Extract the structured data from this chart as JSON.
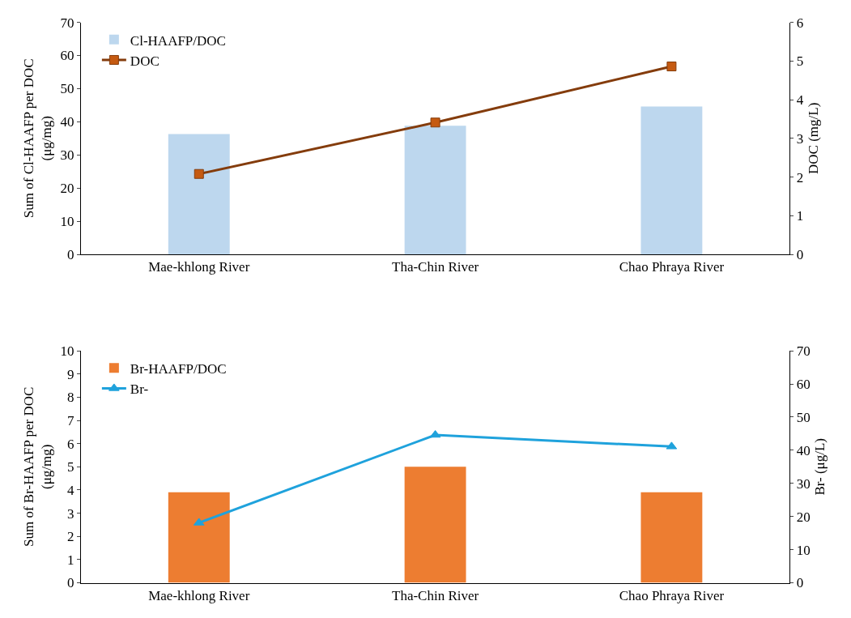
{
  "chart_data": [
    {
      "type": "bar",
      "categories": [
        "Mae-khlong River",
        "Tha-Chin River",
        "Chao Phraya River"
      ],
      "series": [
        {
          "name": "Cl-HAAFP/DOC",
          "color": "#bdd7ee",
          "values": [
            36.3,
            38.8,
            44.6
          ]
        },
        {
          "name": "DOC",
          "type": "line",
          "axis": "y2",
          "color": "#843c0c",
          "marker": "square",
          "values": [
            2.08,
            3.41,
            4.86
          ]
        }
      ],
      "ylabel": "Sum of Cl-HAAFP per DOC\n(μg/mg)",
      "y2label": "DOC (mg/L)",
      "ylim": [
        0,
        70
      ],
      "yticks": [
        0,
        10,
        20,
        30,
        40,
        50,
        60,
        70
      ],
      "y2lim": [
        0,
        6
      ],
      "y2ticks": [
        0,
        1,
        2,
        3,
        4,
        5,
        6
      ],
      "legend": "top left"
    },
    {
      "type": "bar",
      "categories": [
        "Mae-khlong River",
        "Tha-Chin River",
        "Chao Phraya River"
      ],
      "series": [
        {
          "name": "Br-HAAFP/DOC",
          "color": "#ed7d31",
          "values": [
            3.9,
            5.0,
            3.9
          ]
        },
        {
          "name": "Br-",
          "type": "line",
          "axis": "y2",
          "color": "#1fa2dc",
          "marker": "triangle",
          "values": [
            18.1,
            44.6,
            41.1
          ]
        }
      ],
      "ylabel": "Sum of Br-HAAFP per DOC\n(μg/mg)",
      "y2label": "Br- (μg/L)",
      "ylim": [
        0,
        10
      ],
      "yticks": [
        0,
        1,
        2,
        3,
        4,
        5,
        6,
        7,
        8,
        9,
        10
      ],
      "y2lim": [
        0,
        70
      ],
      "y2ticks": [
        0,
        10,
        20,
        30,
        40,
        50,
        60,
        70
      ],
      "legend": "top left"
    }
  ]
}
